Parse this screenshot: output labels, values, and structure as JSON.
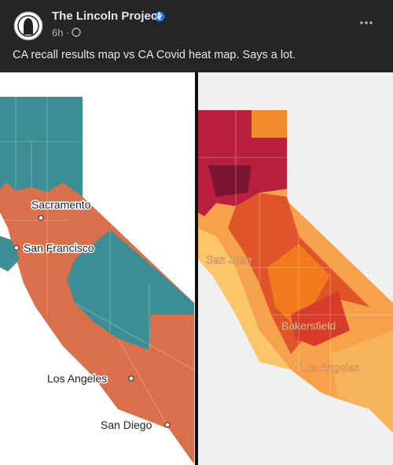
{
  "post": {
    "author": "The Lincoln Project",
    "time": "6h",
    "separator": "·",
    "caption": "CA recall results map vs CA Covid heat map. Says a lot."
  },
  "image": {
    "left_map": {
      "labels": [
        "Sacramento",
        "San Francisco",
        "Los Angeles",
        "San Diego"
      ]
    },
    "right_map": {
      "labels": [
        "San Jose",
        "Bakersfield",
        "Los Angeles"
      ]
    }
  }
}
